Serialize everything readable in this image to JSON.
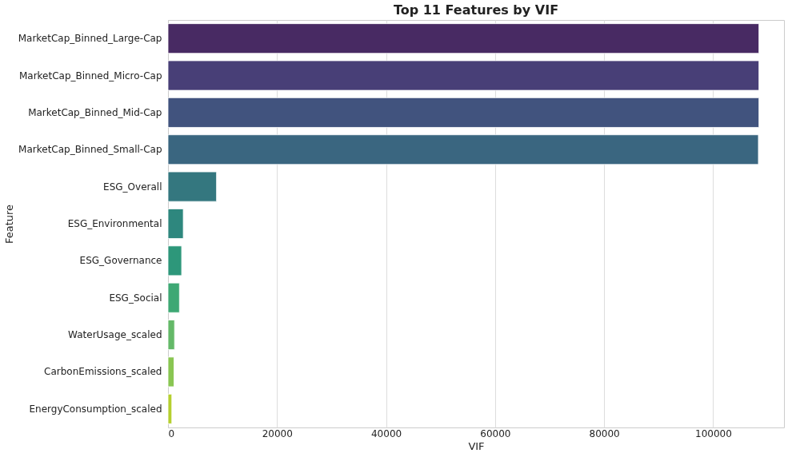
{
  "chart_data": {
    "type": "bar",
    "orientation": "horizontal",
    "title": "Top 11 Features by VIF",
    "xlabel": "VIF",
    "ylabel": "Feature",
    "categories": [
      "MarketCap_Binned_Large-Cap",
      "MarketCap_Binned_Micro-Cap",
      "MarketCap_Binned_Mid-Cap",
      "MarketCap_Binned_Small-Cap",
      "ESG_Overall",
      "ESG_Environmental",
      "ESG_Governance",
      "ESG_Social",
      "WaterUsage_scaled",
      "CarbonEmissions_scaled",
      "EnergyConsumption_scaled"
    ],
    "values": [
      108400,
      108400,
      108400,
      108300,
      8900,
      2800,
      2500,
      2100,
      1200,
      1100,
      700
    ],
    "colors": [
      "#482a63",
      "#483f77",
      "#41537e",
      "#3a6680",
      "#34777f",
      "#2e877e",
      "#2d977a",
      "#3ea874",
      "#64b968",
      "#89c652",
      "#b5cf2e"
    ],
    "xlim": [
      0,
      113000
    ],
    "xticks": [
      0,
      20000,
      40000,
      60000,
      80000,
      100000
    ],
    "grid": "x"
  }
}
